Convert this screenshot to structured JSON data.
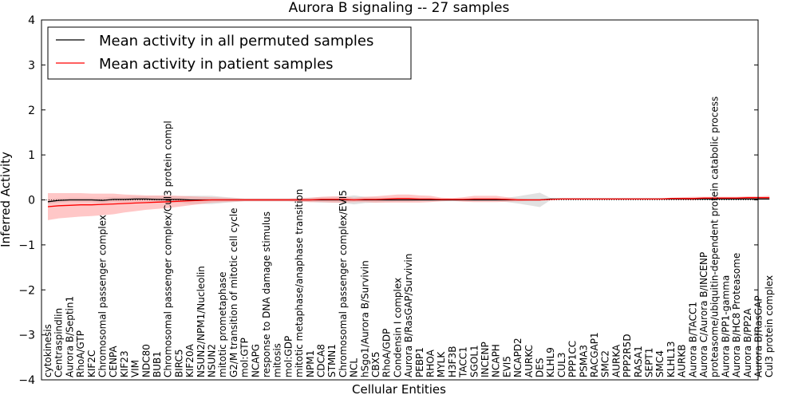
{
  "chart_data": {
    "type": "line",
    "title": "Aurora B signaling -- 27 samples",
    "xlabel": "Cellular Entities",
    "ylabel": "Inferred Activity",
    "ylim": [
      -4,
      4
    ],
    "yticks": [
      -4,
      -3,
      -2,
      -1,
      0,
      1,
      2,
      3,
      4
    ],
    "grid": false,
    "legend_position": "top-left",
    "colors": {
      "permuted": "#000000",
      "patient": "#ff0000",
      "permuted_band": "#c8c8c8",
      "patient_band": "#ff9999"
    },
    "categories": [
      "cytokinesis",
      "Centraspindlin",
      "Aurora B/Septin1",
      "RhoA/GTP",
      "KIF2C",
      "Chromosomal passenger complex",
      "CENPA",
      "KIF23",
      "VIM",
      "NDC80",
      "BUB1",
      "Chromosomal passenger complex/Cul3 protein compl",
      "BIRC5",
      "KIF20A",
      "NSUN2/NPM1/Nucleolin",
      "NSUN2",
      "mitotic prometaphase",
      "G2/M transition of mitotic cell cycle",
      "mol:GTP",
      "NCAPG",
      "response to DNA damage stimulus",
      "mitosis",
      "mol:GDP",
      "mitotic metaphase/anaphase transition",
      "NPM1",
      "CDCA8",
      "STMN1",
      "Chromosomal passenger complex/EVI5",
      "NCL",
      "hSgo1/Aurora B/Survivin",
      "CBX5",
      "RhoA/GDP",
      "Condensin I complex",
      "Aurora B/RasGAP/Survivin",
      "PEBP1",
      "RHOA",
      "MYLK",
      "H3F3B",
      "TACC1",
      "SGOL1",
      "INCENP",
      "NCAPH",
      "EVI5",
      "NCAPD2",
      "AURKC",
      "DES",
      "KLHL9",
      "CUL3",
      "PPP1CC",
      "PSMA3",
      "RACGAP1",
      "SMC2",
      "AURKA",
      "PPP2R5D",
      "RASA1",
      "SEPT1",
      "SMC4",
      "KLHL13",
      "AURKB",
      "Aurora B/TACC1",
      "Aurora C/Aurora B/INCENP",
      "proteasome/ubiquitin-dependent protein catabolic process",
      "Aurora B/PP1-gamma",
      "Aurora B/HC8 Proteasome",
      "Aurora B/PP2A",
      "Aurora B/RasGAP",
      "Cul3 protein complex"
    ],
    "series": [
      {
        "name": "Mean activity in all permuted samples",
        "values": [
          -0.04,
          -0.01,
          0.0,
          0.0,
          0.0,
          -0.01,
          0.01,
          0.01,
          0.02,
          0.02,
          0.01,
          0.01,
          0.01,
          0.0,
          0.0,
          0.0,
          0.0,
          0.0,
          0.0,
          0.0,
          0.0,
          0.0,
          0.0,
          0.0,
          0.0,
          0.0,
          0.0,
          0.0,
          0.0,
          0.0,
          0.0,
          0.0,
          0.0,
          0.0,
          0.0,
          0.0,
          0.0,
          0.0,
          0.0,
          0.0,
          0.0,
          0.0,
          0.0,
          0.0,
          0.0,
          0.0,
          0.02,
          0.02,
          0.02,
          0.02,
          0.02,
          0.02,
          0.02,
          0.02,
          0.02,
          0.02,
          0.02,
          0.02,
          0.02,
          0.02,
          0.02,
          0.02,
          0.02,
          0.02,
          0.02,
          0.02,
          0.02
        ],
        "band": [
          0.05,
          0.05,
          0.05,
          0.05,
          0.05,
          0.06,
          0.06,
          0.06,
          0.06,
          0.06,
          0.07,
          0.07,
          0.07,
          0.09,
          0.09,
          0.09,
          0.07,
          0.05,
          0.03,
          0.03,
          0.03,
          0.03,
          0.03,
          0.03,
          0.05,
          0.06,
          0.06,
          0.07,
          0.1,
          0.07,
          0.06,
          0.05,
          0.04,
          0.04,
          0.03,
          0.03,
          0.03,
          0.03,
          0.03,
          0.03,
          0.03,
          0.03,
          0.05,
          0.08,
          0.12,
          0.16,
          0.02,
          0.02,
          0.02,
          0.02,
          0.02,
          0.02,
          0.02,
          0.02,
          0.02,
          0.02,
          0.02,
          0.02,
          0.02,
          0.02,
          0.02,
          0.02,
          0.02,
          0.02,
          0.02,
          0.02,
          0.02
        ]
      },
      {
        "name": "Mean activity in patient samples",
        "values": [
          -0.15,
          -0.13,
          -0.12,
          -0.11,
          -0.11,
          -0.1,
          -0.09,
          -0.08,
          -0.07,
          -0.06,
          -0.05,
          -0.04,
          -0.03,
          -0.02,
          -0.01,
          0.0,
          0.0,
          0.0,
          0.0,
          0.0,
          0.0,
          0.0,
          0.0,
          0.0,
          0.0,
          0.01,
          0.01,
          0.01,
          0.0,
          0.01,
          0.01,
          0.02,
          0.03,
          0.03,
          0.02,
          0.02,
          0.01,
          0.01,
          0.01,
          0.02,
          0.02,
          0.02,
          0.01,
          0.0,
          0.0,
          0.0,
          0.01,
          0.02,
          0.02,
          0.02,
          0.02,
          0.02,
          0.02,
          0.02,
          0.02,
          0.02,
          0.02,
          0.03,
          0.03,
          0.03,
          0.04,
          0.04,
          0.04,
          0.04,
          0.05,
          0.05,
          0.05
        ],
        "band": [
          0.3,
          0.28,
          0.27,
          0.26,
          0.25,
          0.24,
          0.23,
          0.2,
          0.18,
          0.16,
          0.15,
          0.14,
          0.12,
          0.1,
          0.08,
          0.06,
          0.05,
          0.04,
          0.03,
          0.03,
          0.03,
          0.03,
          0.03,
          0.04,
          0.05,
          0.06,
          0.07,
          0.07,
          0.05,
          0.06,
          0.07,
          0.08,
          0.09,
          0.09,
          0.08,
          0.07,
          0.04,
          0.03,
          0.05,
          0.07,
          0.07,
          0.07,
          0.05,
          0.03,
          0.02,
          0.02,
          0.01,
          0.01,
          0.01,
          0.01,
          0.01,
          0.01,
          0.01,
          0.01,
          0.01,
          0.01,
          0.01,
          0.02,
          0.03,
          0.04,
          0.03,
          0.03,
          0.03,
          0.03,
          0.03,
          0.03,
          0.04
        ]
      }
    ]
  }
}
